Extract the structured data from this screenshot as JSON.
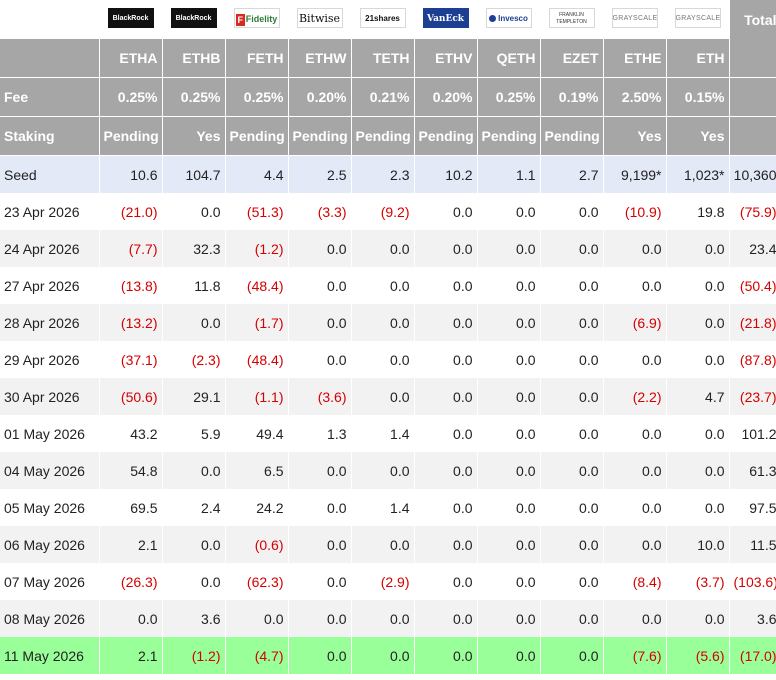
{
  "header": {
    "total_label": "Total",
    "fee_label": "Fee",
    "staking_label": "Staking"
  },
  "funds": [
    {
      "issuer": "BlackRock",
      "logo_icon": "blackrock-logo-icon",
      "ticker": "ETHA",
      "fee": "0.25%",
      "staking": "Pending"
    },
    {
      "issuer": "BlackRock",
      "logo_icon": "blackrock-logo-icon",
      "ticker": "ETHB",
      "fee": "0.25%",
      "staking": "Yes"
    },
    {
      "issuer": "Fidelity",
      "logo_icon": "fidelity-logo-icon",
      "ticker": "FETH",
      "fee": "0.25%",
      "staking": "Pending"
    },
    {
      "issuer": "Bitwise",
      "logo_icon": "bitwise-logo-icon",
      "ticker": "ETHW",
      "fee": "0.20%",
      "staking": "Pending"
    },
    {
      "issuer": "21shares",
      "logo_icon": "21shares-logo-icon",
      "ticker": "TETH",
      "fee": "0.21%",
      "staking": "Pending"
    },
    {
      "issuer": "VanEck",
      "logo_icon": "vaneck-logo-icon",
      "ticker": "ETHV",
      "fee": "0.20%",
      "staking": "Pending"
    },
    {
      "issuer": "Invesco",
      "logo_icon": "invesco-logo-icon",
      "ticker": "QETH",
      "fee": "0.25%",
      "staking": "Pending"
    },
    {
      "issuer": "FRANKLIN TEMPLETON",
      "logo_icon": "franklin-templeton-logo-icon",
      "ticker": "EZET",
      "fee": "0.19%",
      "staking": "Pending"
    },
    {
      "issuer": "GRAYSCALE",
      "logo_icon": "grayscale-logo-icon",
      "ticker": "ETHE",
      "fee": "2.50%",
      "staking": "Yes"
    },
    {
      "issuer": "GRAYSCALE",
      "logo_icon": "grayscale-logo-icon",
      "ticker": "ETH",
      "fee": "0.15%",
      "staking": "Yes"
    }
  ],
  "rows": [
    {
      "label": "Seed",
      "values": [
        "10.6",
        "104.7",
        "4.4",
        "2.5",
        "2.3",
        "10.2",
        "1.1",
        "2.7",
        "9,199*",
        "1,023*"
      ],
      "total": "10,360",
      "style": "seed"
    },
    {
      "label": "23 Apr 2026",
      "values": [
        "(21.0)",
        "0.0",
        "(51.3)",
        "(3.3)",
        "(9.2)",
        "0.0",
        "0.0",
        "0.0",
        "(10.9)",
        "19.8"
      ],
      "total": "(75.9)",
      "style": "odd"
    },
    {
      "label": "24 Apr 2026",
      "values": [
        "(7.7)",
        "32.3",
        "(1.2)",
        "0.0",
        "0.0",
        "0.0",
        "0.0",
        "0.0",
        "0.0",
        "0.0"
      ],
      "total": "23.4",
      "style": "even"
    },
    {
      "label": "27 Apr 2026",
      "values": [
        "(13.8)",
        "11.8",
        "(48.4)",
        "0.0",
        "0.0",
        "0.0",
        "0.0",
        "0.0",
        "0.0",
        "0.0"
      ],
      "total": "(50.4)",
      "style": "odd"
    },
    {
      "label": "28 Apr 2026",
      "values": [
        "(13.2)",
        "0.0",
        "(1.7)",
        "0.0",
        "0.0",
        "0.0",
        "0.0",
        "0.0",
        "(6.9)",
        "0.0"
      ],
      "total": "(21.8)",
      "style": "even"
    },
    {
      "label": "29 Apr 2026",
      "values": [
        "(37.1)",
        "(2.3)",
        "(48.4)",
        "0.0",
        "0.0",
        "0.0",
        "0.0",
        "0.0",
        "0.0",
        "0.0"
      ],
      "total": "(87.8)",
      "style": "odd"
    },
    {
      "label": "30 Apr 2026",
      "values": [
        "(50.6)",
        "29.1",
        "(1.1)",
        "(3.6)",
        "0.0",
        "0.0",
        "0.0",
        "0.0",
        "(2.2)",
        "4.7"
      ],
      "total": "(23.7)",
      "style": "even"
    },
    {
      "label": "01 May 2026",
      "values": [
        "43.2",
        "5.9",
        "49.4",
        "1.3",
        "1.4",
        "0.0",
        "0.0",
        "0.0",
        "0.0",
        "0.0"
      ],
      "total": "101.2",
      "style": "odd"
    },
    {
      "label": "04 May 2026",
      "values": [
        "54.8",
        "0.0",
        "6.5",
        "0.0",
        "0.0",
        "0.0",
        "0.0",
        "0.0",
        "0.0",
        "0.0"
      ],
      "total": "61.3",
      "style": "even"
    },
    {
      "label": "05 May 2026",
      "values": [
        "69.5",
        "2.4",
        "24.2",
        "0.0",
        "1.4",
        "0.0",
        "0.0",
        "0.0",
        "0.0",
        "0.0"
      ],
      "total": "97.5",
      "style": "odd"
    },
    {
      "label": "06 May 2026",
      "values": [
        "2.1",
        "0.0",
        "(0.6)",
        "0.0",
        "0.0",
        "0.0",
        "0.0",
        "0.0",
        "0.0",
        "10.0"
      ],
      "total": "11.5",
      "style": "even"
    },
    {
      "label": "07 May 2026",
      "values": [
        "(26.3)",
        "0.0",
        "(62.3)",
        "0.0",
        "(2.9)",
        "0.0",
        "0.0",
        "0.0",
        "(8.4)",
        "(3.7)"
      ],
      "total": "(103.6)",
      "style": "odd"
    },
    {
      "label": "08 May 2026",
      "values": [
        "0.0",
        "3.6",
        "0.0",
        "0.0",
        "0.0",
        "0.0",
        "0.0",
        "0.0",
        "0.0",
        "0.0"
      ],
      "total": "3.6",
      "style": "even"
    },
    {
      "label": "11 May 2026",
      "values": [
        "2.1",
        "(1.2)",
        "(4.7)",
        "0.0",
        "0.0",
        "0.0",
        "0.0",
        "0.0",
        "(7.6)",
        "(5.6)"
      ],
      "total": "(17.0)",
      "style": "latest"
    }
  ],
  "colors": {
    "header_gray": "#a6a6a6",
    "negative": "#d50000",
    "seed_row": "#e4e9f7",
    "latest_row": "#99ff99",
    "stripe": "#f2f2f2"
  }
}
